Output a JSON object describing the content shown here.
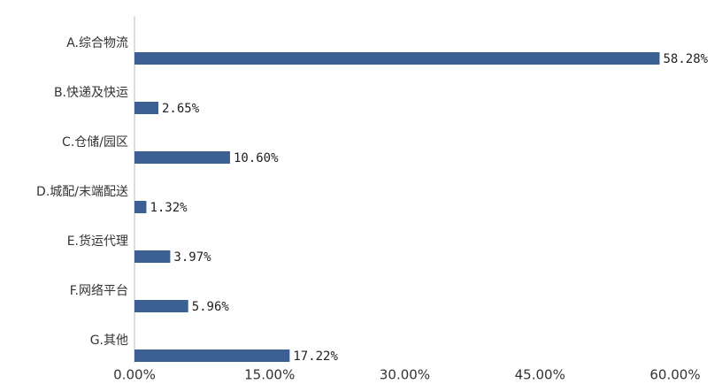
{
  "chart_data": {
    "type": "hbar",
    "categories": [
      "A.综合物流",
      "B.快递及快运",
      "C.仓储/园区",
      "D.城配/末端配送",
      "E.货运代理",
      "F.网络平台",
      "G.其他"
    ],
    "values": [
      58.28,
      2.65,
      10.6,
      1.32,
      3.97,
      5.96,
      17.22
    ],
    "value_labels": [
      "58.28%",
      "2.65%",
      "10.60%",
      "1.32%",
      "3.97%",
      "5.96%",
      "17.22%"
    ],
    "color": "#3b5f92",
    "xlim": [
      0,
      60
    ],
    "xticks": [
      {
        "value": 0,
        "label": "0.00%"
      },
      {
        "value": 15,
        "label": "15.00%"
      },
      {
        "value": 30,
        "label": "30.00%"
      },
      {
        "value": 45,
        "label": "45.00%"
      },
      {
        "value": 60,
        "label": "60.00%"
      }
    ],
    "grid": false
  }
}
